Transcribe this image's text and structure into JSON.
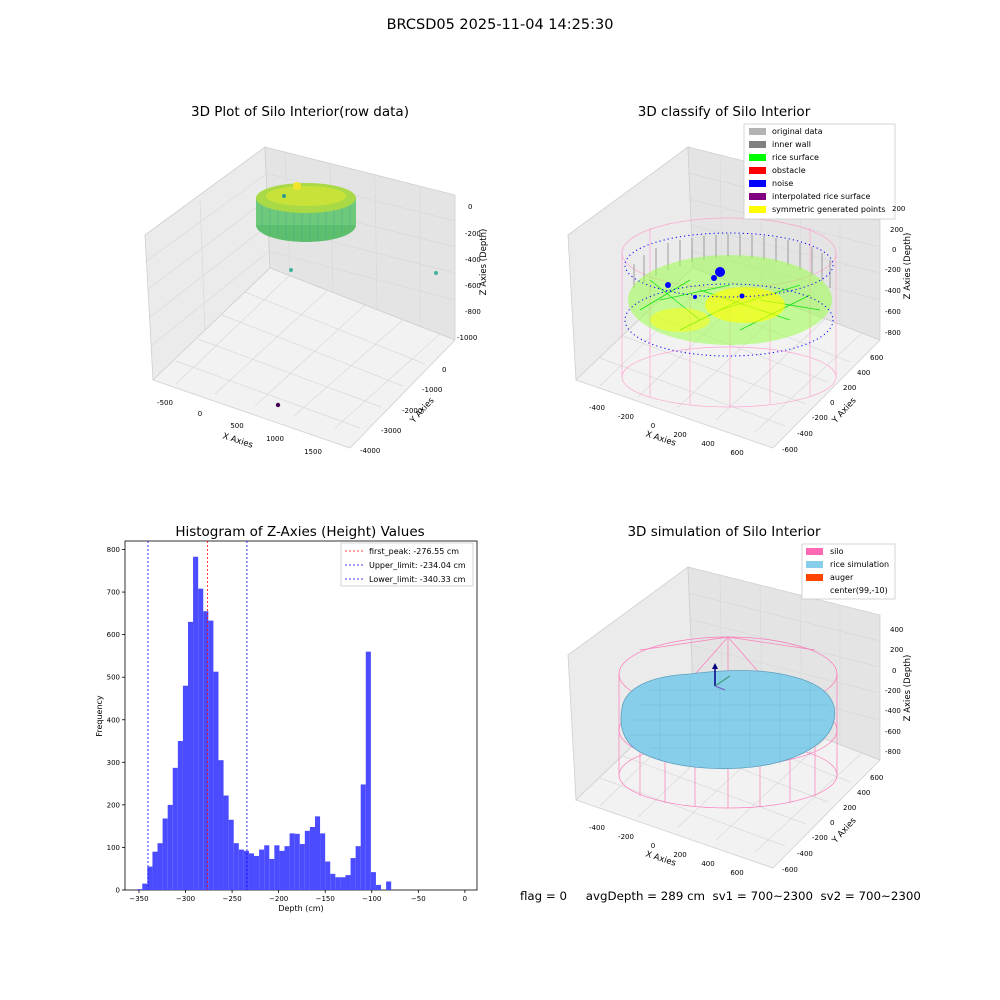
{
  "figure_title": "BRCSD05 2025-11-04 14:25:30",
  "panels": {
    "raw": {
      "title": "3D Plot of Silo Interior(row data)",
      "x_label": "X Axies",
      "y_label": "Y Axies",
      "z_label": "Z Axies (Depth)",
      "x_ticks": [
        "-500",
        "0",
        "500",
        "1000",
        "1500"
      ],
      "y_ticks": [
        "0",
        "-1000",
        "-2000",
        "-3000",
        "-4000"
      ],
      "z_ticks": [
        "0",
        "-200",
        "-400",
        "-600",
        "-800",
        "-1000"
      ]
    },
    "classify": {
      "title": "3D classify of Silo Interior",
      "x_label": "X Axies",
      "y_label": "Y Axies",
      "z_label": "Z Axies (Depth)",
      "x_ticks": [
        "-400",
        "-200",
        "0",
        "200",
        "400",
        "600"
      ],
      "y_ticks": [
        "600",
        "400",
        "200",
        "0",
        "-200",
        "-400",
        "-600"
      ],
      "z_ticks": [
        "200",
        "0",
        "-200",
        "-400",
        "-600",
        "-800"
      ],
      "legend": [
        {
          "label": "original data",
          "color": "#b3b3b3"
        },
        {
          "label": "inner wall",
          "color": "#808080"
        },
        {
          "label": "rice surface",
          "color": "#00ff00"
        },
        {
          "label": "obstacle",
          "color": "#ff0000"
        },
        {
          "label": "noise",
          "color": "#0000ff"
        },
        {
          "label": "interpolated rice surface",
          "color": "#800080"
        },
        {
          "label": "symmetric generated points",
          "color": "#ffff00"
        }
      ]
    },
    "simulation": {
      "title": "3D simulation of Silo Interior",
      "x_label": "X Axies",
      "y_label": "Y Axies",
      "z_label": "Z Axies (Depth)",
      "x_ticks": [
        "-400",
        "-200",
        "0",
        "200",
        "400",
        "600"
      ],
      "y_ticks": [
        "600",
        "400",
        "200",
        "0",
        "-200",
        "-400",
        "-600"
      ],
      "z_ticks": [
        "400",
        "200",
        "0",
        "-200",
        "-400",
        "-600",
        "-800"
      ],
      "legend": [
        {
          "label": "silo",
          "color": "#ff69b4"
        },
        {
          "label": "rice simulation",
          "color": "#87ceeb"
        },
        {
          "label": "auger",
          "color": "#ff4500"
        },
        {
          "label": "center(99,-10)",
          "color": ""
        }
      ]
    }
  },
  "chart_data": {
    "type": "bar",
    "title": "Histogram of Z-Axies (Height) Values",
    "xlabel": "Depth (cm)",
    "ylabel": "Frequency",
    "xlim": [
      -365,
      13
    ],
    "ylim": [
      0,
      820
    ],
    "x_ticks": [
      -350,
      -300,
      -250,
      -200,
      -150,
      -100,
      -50,
      0
    ],
    "y_ticks": [
      0,
      100,
      200,
      300,
      400,
      500,
      600,
      700,
      800
    ],
    "bar_color": "#4b4bff",
    "bin_edges_start": -351.9,
    "bin_width": 5.455,
    "values": [
      2,
      15,
      55,
      90,
      110,
      168,
      200,
      287,
      350,
      480,
      630,
      783,
      708,
      655,
      633,
      513,
      305,
      222,
      165,
      110,
      95,
      92,
      86,
      80,
      95,
      105,
      73,
      105,
      92,
      103,
      133,
      132,
      108,
      139,
      148,
      173,
      133,
      67,
      38,
      30,
      30,
      35,
      75,
      103,
      248,
      560,
      42,
      12,
      0,
      20
    ],
    "lines": [
      {
        "label": "first_peak: -276.55 cm",
        "value": -276.55,
        "color": "#ff0000"
      },
      {
        "label": "Upper_limit: -234.04 cm",
        "value": -234.04,
        "color": "#0000ff"
      },
      {
        "label": "Lower_limit: -340.33 cm",
        "value": -340.33,
        "color": "#0000ff"
      }
    ],
    "legend_position": "top-right"
  },
  "status": {
    "text": "flag = 0     avgDepth = 289 cm  sv1 = 700~2300  sv2 = 700~2300"
  }
}
